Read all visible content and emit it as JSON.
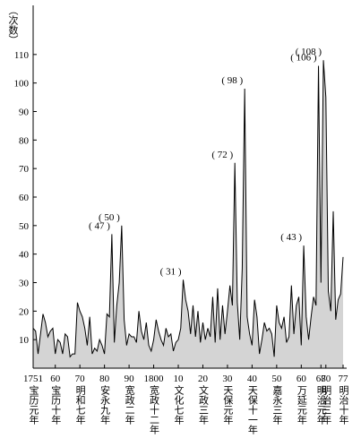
{
  "chart_data": {
    "type": "area",
    "y_label": "（次数）",
    "x": [
      1751,
      1752,
      1753,
      1754,
      1755,
      1756,
      1757,
      1758,
      1759,
      1760,
      1761,
      1762,
      1763,
      1764,
      1765,
      1766,
      1767,
      1768,
      1769,
      1770,
      1771,
      1772,
      1773,
      1774,
      1775,
      1776,
      1777,
      1778,
      1779,
      1780,
      1781,
      1782,
      1783,
      1784,
      1785,
      1786,
      1787,
      1788,
      1789,
      1790,
      1791,
      1792,
      1793,
      1794,
      1795,
      1796,
      1797,
      1798,
      1799,
      1800,
      1801,
      1802,
      1803,
      1804,
      1805,
      1806,
      1807,
      1808,
      1809,
      1810,
      1811,
      1812,
      1813,
      1814,
      1815,
      1816,
      1817,
      1818,
      1819,
      1820,
      1821,
      1822,
      1823,
      1824,
      1825,
      1826,
      1827,
      1828,
      1829,
      1830,
      1831,
      1832,
      1833,
      1834,
      1835,
      1836,
      1837,
      1838,
      1839,
      1840,
      1841,
      1842,
      1843,
      1844,
      1845,
      1846,
      1847,
      1848,
      1849,
      1850,
      1851,
      1852,
      1853,
      1854,
      1855,
      1856,
      1857,
      1858,
      1859,
      1860,
      1861,
      1862,
      1863,
      1864,
      1865,
      1866,
      1867,
      1868,
      1869,
      1870,
      1871,
      1872,
      1873,
      1874,
      1875,
      1876,
      1877
    ],
    "values": [
      14,
      13,
      5,
      12,
      19,
      16,
      11,
      13,
      14,
      5,
      10,
      9,
      5,
      12,
      11,
      4,
      5,
      5,
      23,
      20,
      18,
      14,
      8,
      18,
      5,
      7,
      6,
      10,
      8,
      5,
      19,
      18,
      47,
      9,
      22,
      30,
      50,
      17,
      8,
      12,
      11,
      11,
      9,
      20,
      13,
      10,
      16,
      8,
      6,
      10,
      17,
      13,
      10,
      8,
      14,
      11,
      12,
      6,
      9,
      10,
      14,
      31,
      24,
      20,
      12,
      22,
      11,
      20,
      9,
      16,
      10,
      14,
      11,
      25,
      9,
      28,
      10,
      22,
      12,
      20,
      29,
      22,
      72,
      23,
      10,
      35,
      98,
      18,
      12,
      8,
      24,
      18,
      5,
      10,
      16,
      13,
      14,
      12,
      4,
      22,
      16,
      14,
      18,
      9,
      11,
      29,
      12,
      22,
      25,
      8,
      43,
      18,
      10,
      18,
      25,
      22,
      106,
      30,
      108,
      95,
      27,
      20,
      55,
      17,
      24,
      26,
      39
    ],
    "value_labels": [
      null,
      null,
      null,
      null,
      null,
      null,
      null,
      null,
      null,
      null,
      null,
      null,
      null,
      null,
      null,
      null,
      null,
      null,
      null,
      null,
      null,
      null,
      null,
      null,
      null,
      null,
      null,
      null,
      null,
      null,
      null,
      null,
      "( 47 )",
      null,
      null,
      null,
      "( 50 )",
      null,
      null,
      null,
      null,
      null,
      null,
      null,
      null,
      null,
      null,
      null,
      null,
      null,
      null,
      null,
      null,
      null,
      null,
      null,
      null,
      null,
      null,
      null,
      null,
      "( 31 )",
      null,
      null,
      null,
      null,
      null,
      null,
      null,
      null,
      null,
      null,
      null,
      null,
      null,
      null,
      null,
      null,
      null,
      null,
      null,
      null,
      "( 72 )",
      null,
      null,
      null,
      "( 98 )",
      null,
      null,
      null,
      null,
      null,
      null,
      null,
      null,
      null,
      null,
      null,
      null,
      null,
      null,
      null,
      null,
      null,
      null,
      null,
      null,
      null,
      null,
      null,
      "( 43 )",
      null,
      null,
      null,
      null,
      null,
      "( 106 )",
      null,
      "( 108 )",
      null,
      null,
      null,
      null,
      null,
      null,
      null,
      null
    ],
    "color": "#d4d4d4",
    "line_color": "#000000",
    "xlim": [
      1751,
      1877
    ],
    "ylim": [
      0,
      120
    ],
    "xticks": [
      1751,
      {
        "value": 1760,
        "label": "60"
      },
      {
        "value": 1770,
        "label": "70"
      },
      {
        "value": 1780,
        "label": "80"
      },
      {
        "value": 1790,
        "label": "90"
      },
      1800,
      {
        "value": 1810,
        "label": "10"
      },
      {
        "value": 1820,
        "label": "20"
      },
      {
        "value": 1830,
        "label": "30"
      },
      {
        "value": 1840,
        "label": "40"
      },
      {
        "value": 1850,
        "label": "50"
      },
      {
        "value": 1860,
        "label": "60"
      },
      {
        "value": 1868,
        "label": "68"
      },
      {
        "value": 1870,
        "label": "70"
      },
      {
        "value": 1877,
        "label": "77"
      }
    ],
    "era_labels": [
      "宝历元年",
      "宝历十年",
      "明和七年",
      "安永九年",
      "宽政二年",
      "宽政十二年",
      "文化七年",
      "文政三年",
      "天保元年",
      "天保十一年",
      "嘉永三年",
      "万延元年",
      "明治元年",
      "明治三年",
      "明治十年"
    ],
    "yticks": [
      10,
      20,
      30,
      40,
      50,
      60,
      70,
      80,
      90,
      100,
      110
    ],
    "grid": false
  }
}
